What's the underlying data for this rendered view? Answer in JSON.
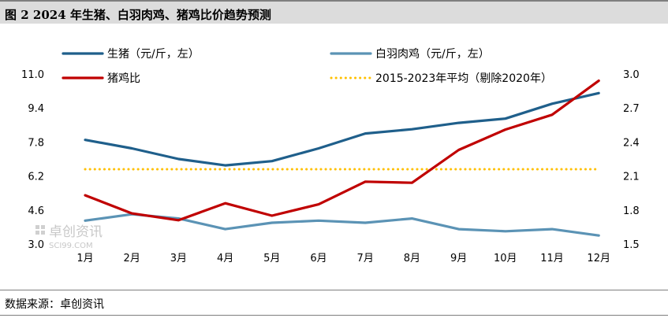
{
  "title": "图 2 2024 年生猪、白羽肉鸡、猪鸡比价趋势预测",
  "source": "数据来源：卓创资讯",
  "watermark": {
    "name": "卓创资讯",
    "sub": "SCI99.COM"
  },
  "colors": {
    "pig": "#1f5f8b",
    "chicken": "#5b93b5",
    "ratio": "#c00000",
    "avg": "#ffc000"
  },
  "chart_data": {
    "type": "line",
    "categories": [
      "1月",
      "2月",
      "3月",
      "4月",
      "5月",
      "6月",
      "7月",
      "8月",
      "9月",
      "10月",
      "11月",
      "12月"
    ],
    "left_axis": {
      "min": 3.0,
      "max": 11.0,
      "ticks": [
        "3.0",
        "4.6",
        "6.2",
        "7.8",
        "9.4",
        "11.0"
      ]
    },
    "right_axis": {
      "min": 1.5,
      "max": 3.0,
      "ticks": [
        "1.5",
        "1.8",
        "2.1",
        "2.4",
        "2.7",
        "3.0"
      ]
    },
    "series": [
      {
        "name": "生猪（元/斤，左）",
        "axis": "left",
        "color": "#1f5f8b",
        "values": [
          7.9,
          7.5,
          7.0,
          6.7,
          6.9,
          7.5,
          8.2,
          8.4,
          8.7,
          8.9,
          9.6,
          10.1
        ]
      },
      {
        "name": "白羽肉鸡（元/斤，左）",
        "axis": "left",
        "color": "#5b93b5",
        "values": [
          4.1,
          4.4,
          4.2,
          3.7,
          4.0,
          4.1,
          4.0,
          4.2,
          3.7,
          3.6,
          3.7,
          3.4
        ]
      },
      {
        "name": "猪鸡比",
        "axis": "right",
        "color": "#c00000",
        "values": [
          1.93,
          1.77,
          1.71,
          1.86,
          1.75,
          1.85,
          2.05,
          2.04,
          2.33,
          2.51,
          2.64,
          2.94
        ]
      },
      {
        "name": "2015-2023年平均（剔除2020年）",
        "axis": "right",
        "color": "#ffc000",
        "style": "dotted",
        "values": [
          2.16,
          2.16,
          2.16,
          2.16,
          2.16,
          2.16,
          2.16,
          2.16,
          2.16,
          2.16,
          2.16,
          2.16
        ]
      }
    ]
  }
}
